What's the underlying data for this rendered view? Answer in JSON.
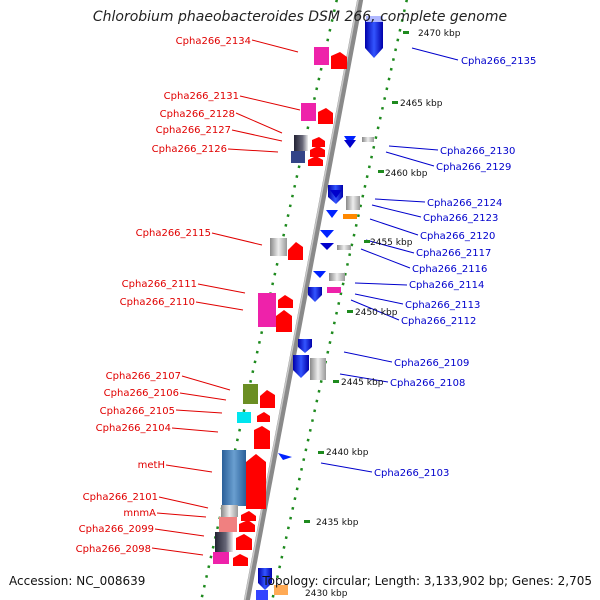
{
  "title": "Chlorobium phaeobacteroides DSM 266, complete genome",
  "footer": {
    "accession": "Accession: NC_008639",
    "topology": "Topology: circular; Length: 3,133,902 bp; Genes: 2,705"
  },
  "colors": {
    "left_label": "#e00000",
    "right_label": "#0000cc",
    "backbone": "#8a8a8a",
    "guide_dots": "#1e8a1e"
  },
  "ticks": [
    "2470 kbp",
    "2465 kbp",
    "2460 kbp",
    "2455 kbp",
    "2450 kbp",
    "2445 kbp",
    "2440 kbp",
    "2435 kbp",
    "2430 kbp"
  ],
  "left_labels": [
    "Cpha266_2134",
    "Cpha266_2131",
    "Cpha266_2128",
    "Cpha266_2127",
    "Cpha266_2126",
    "Cpha266_2115",
    "Cpha266_2111",
    "Cpha266_2110",
    "Cpha266_2107",
    "Cpha266_2106",
    "Cpha266_2105",
    "Cpha266_2104",
    "metH",
    "Cpha266_2101",
    "mnmA",
    "Cpha266_2099",
    "Cpha266_2098"
  ],
  "right_labels": [
    "Cpha266_2135",
    "Cpha266_2130",
    "Cpha266_2129",
    "Cpha266_2124",
    "Cpha266_2123",
    "Cpha266_2120",
    "Cpha266_2117",
    "Cpha266_2116",
    "Cpha266_2114",
    "Cpha266_2113",
    "Cpha266_2112",
    "Cpha266_2109",
    "Cpha266_2108",
    "Cpha266_2103"
  ]
}
